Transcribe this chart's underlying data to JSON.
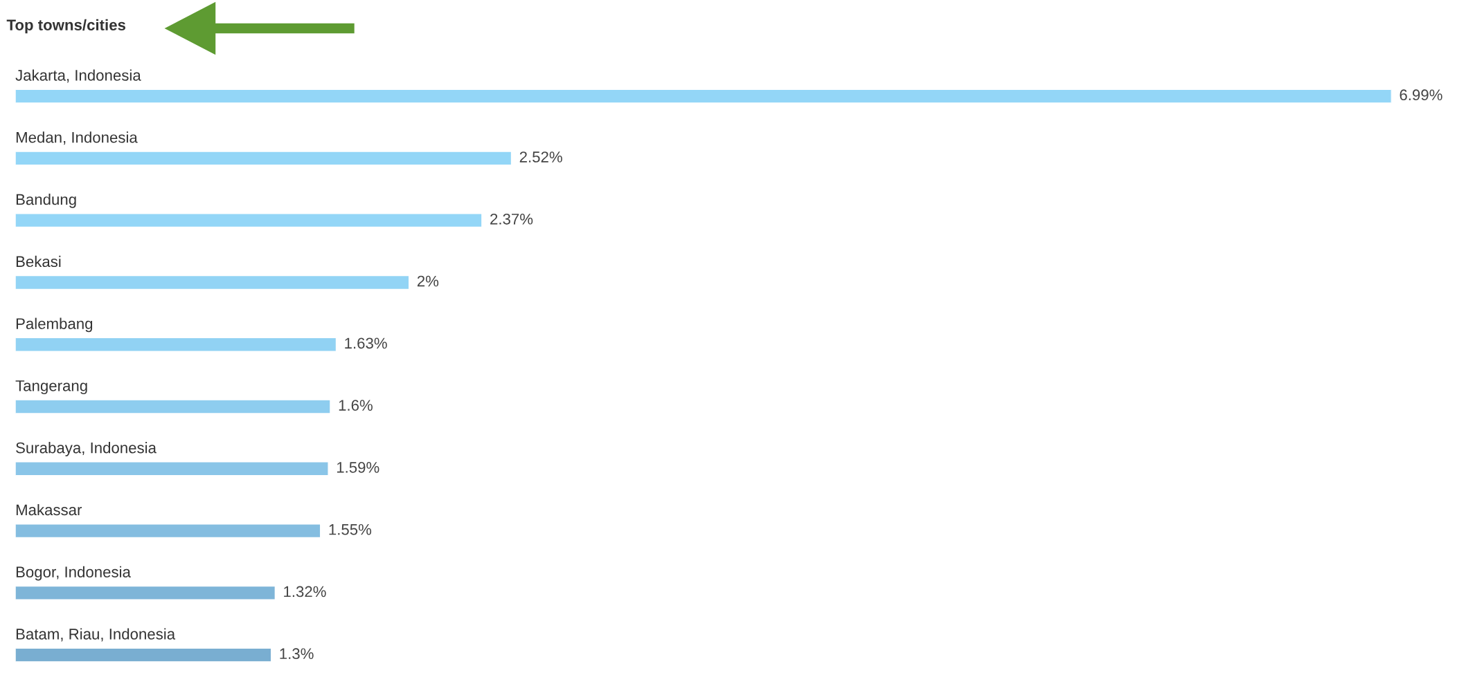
{
  "chart_data": {
    "type": "bar",
    "orientation": "horizontal",
    "title": "Top towns/cities",
    "categories": [
      "Jakarta, Indonesia",
      "Medan, Indonesia",
      "Bandung",
      "Bekasi",
      "Palembang",
      "Tangerang",
      "Surabaya, Indonesia",
      "Makassar",
      "Bogor, Indonesia",
      "Batam, Riau, Indonesia"
    ],
    "values": [
      6.99,
      2.52,
      2.37,
      2,
      1.63,
      1.6,
      1.59,
      1.55,
      1.32,
      1.3
    ],
    "value_labels": [
      "6.99%",
      "2.52%",
      "2.37%",
      "2%",
      "1.63%",
      "1.6%",
      "1.59%",
      "1.55%",
      "1.32%",
      "1.3%"
    ],
    "colors": [
      "#93d6f7",
      "#93d6f7",
      "#93d6f7",
      "#92d4f5",
      "#91d2f3",
      "#8ecdef",
      "#8ac5e8",
      "#84bde0",
      "#7eb5d8",
      "#79aed1"
    ]
  }
}
